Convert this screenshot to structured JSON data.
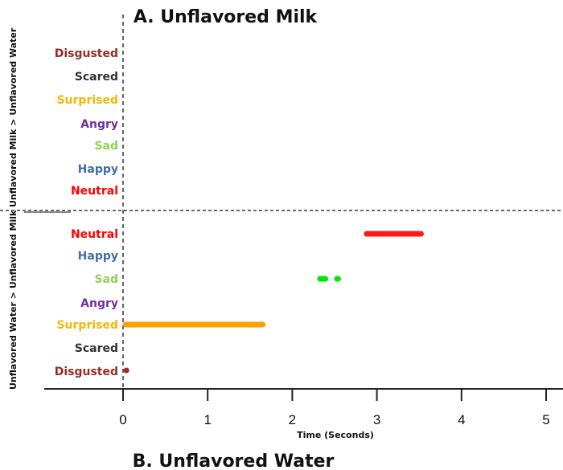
{
  "chart_data": {
    "type": "timeline",
    "title_top": "A. Unflavored Milk",
    "title_bottom": "B. Unflavored Water",
    "xlabel": "Time (Seconds)",
    "xlim": [
      -0.92,
      5.2
    ],
    "xticks": [
      0,
      1,
      2,
      3,
      4,
      5
    ],
    "xtick_labels": [
      "0",
      "1",
      "2",
      "3",
      "4",
      "5"
    ],
    "category_colors": {
      "Disgusted": "#9b2a2a",
      "Scared": "#333333",
      "Surprised": "#f5b800",
      "Angry": "#7030a0",
      "Sad": "#92d050",
      "Happy": "#3d6ea8",
      "Neutral": "#ff0000"
    },
    "panels": [
      {
        "name": "Unflavored Milk > Unflavored Water",
        "categories": [
          "Disgusted",
          "Scared",
          "Surprised",
          "Angry",
          "Sad",
          "Happy",
          "Neutral"
        ],
        "segments": []
      },
      {
        "name": "Unflavored Water > Unflavored Milk",
        "categories": [
          "Neutral",
          "Happy",
          "Sad",
          "Angry",
          "Surprised",
          "Scared",
          "Disgusted"
        ],
        "segments": [
          {
            "category": "Neutral",
            "start": 2.85,
            "end": 3.55,
            "color": "#ff1a1a"
          },
          {
            "category": "Sad",
            "start": 2.3,
            "end": 2.42,
            "color": "#00e600"
          },
          {
            "category": "Sad",
            "start": 2.5,
            "end": 2.57,
            "color": "#00e600"
          },
          {
            "category": "Surprised",
            "start": 0.0,
            "end": 1.68,
            "color": "#ffa200"
          },
          {
            "category": "Disgusted",
            "start": 0.03,
            "end": 0.03,
            "color": "#a52a2a"
          }
        ]
      }
    ]
  }
}
